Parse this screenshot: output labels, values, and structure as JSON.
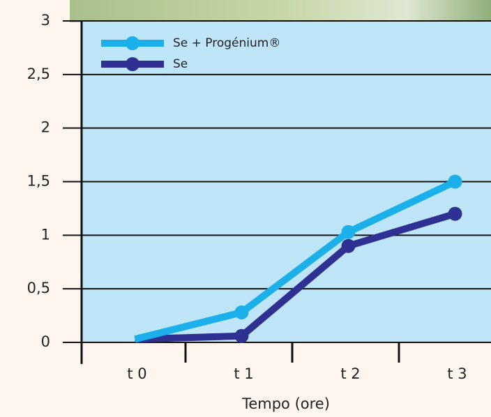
{
  "chart_data": {
    "type": "line",
    "x_label": "Tempo (ore)",
    "categories": [
      "t 0",
      "t 1",
      "t 2",
      "t 3"
    ],
    "series": [
      {
        "name": "Se + Progénium®",
        "color": "#1cb0ea",
        "values": [
          0.03,
          0.28,
          1.03,
          1.5
        ]
      },
      {
        "name": "Se",
        "color": "#2e3192",
        "values": [
          0.03,
          0.06,
          0.9,
          1.2
        ]
      }
    ],
    "ylim": [
      0,
      3
    ],
    "yticks": [
      0,
      {
        "value": 0.5,
        "label": "0,5"
      },
      1,
      {
        "value": 1.5,
        "label": "1,5"
      },
      2,
      {
        "value": 2.5,
        "label": "2,5"
      },
      3
    ],
    "grid": true,
    "legend": "top-left",
    "plot_background": "#bfe6f8"
  }
}
